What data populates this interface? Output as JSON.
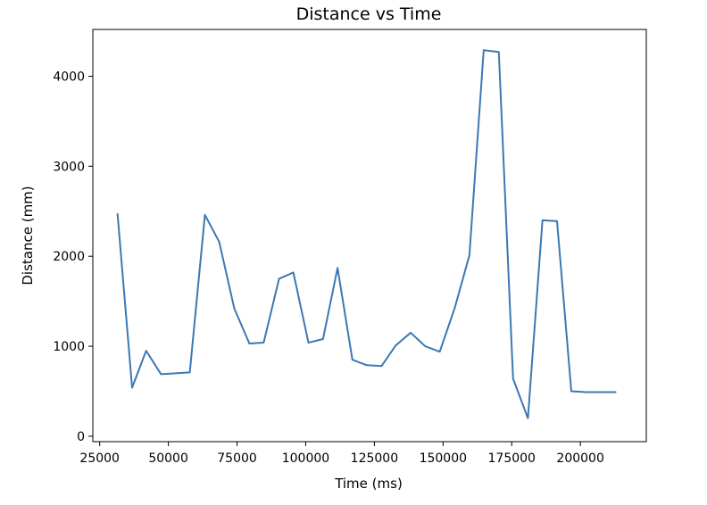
{
  "chart_data": {
    "type": "line",
    "title": "Distance vs Time",
    "xlabel": "Time (ms)",
    "ylabel": "Distance (mm)",
    "xlim": [
      22500,
      224000
    ],
    "ylim": [
      -60,
      4520
    ],
    "xticks": [
      25000,
      50000,
      75000,
      100000,
      125000,
      150000,
      175000,
      200000
    ],
    "yticks": [
      0,
      1000,
      2000,
      3000,
      4000
    ],
    "grid": false,
    "legend": "none",
    "series": [
      {
        "color": "#3c78b4",
        "x": [
          31500,
          36800,
          41900,
          47300,
          52600,
          57800,
          63300,
          68500,
          74000,
          79500,
          84700,
          90300,
          95500,
          101000,
          106300,
          111600,
          117000,
          122200,
          127600,
          132800,
          138200,
          143500,
          148800,
          154200,
          159600,
          164800,
          170300,
          175500,
          180900,
          186200,
          191500,
          196700,
          202100,
          207300,
          212800
        ],
        "y": [
          2470,
          540,
          950,
          690,
          700,
          710,
          2460,
          2160,
          1420,
          1030,
          1040,
          1750,
          1820,
          1040,
          1080,
          1870,
          850,
          790,
          780,
          1010,
          1150,
          1000,
          940,
          1420,
          2010,
          4290,
          4270,
          640,
          200,
          2400,
          2390,
          500,
          490,
          490,
          490
        ]
      }
    ]
  }
}
